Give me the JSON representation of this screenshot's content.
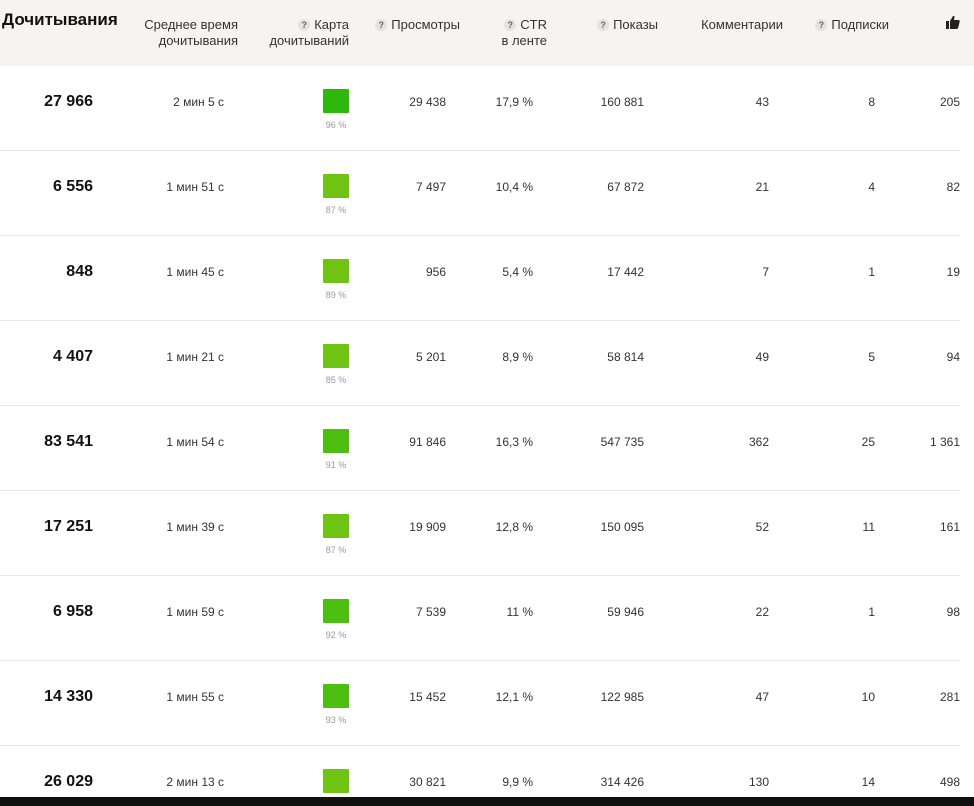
{
  "header": {
    "reads": "Дочитывания",
    "avg_time_1": "Среднее время",
    "avg_time_2": "дочитывания",
    "map_1": "Карта",
    "map_2": "дочитываний",
    "views": "Просмотры",
    "ctr_1": "CTR",
    "ctr_2": "в ленте",
    "impressions": "Показы",
    "comments": "Комментарии",
    "subscriptions": "Подписки",
    "help_symbol": "?",
    "likes_icon": "thumbs-up-icon"
  },
  "colors": {
    "dark_green": "#2db80e",
    "mid_green": "#4cbe10",
    "light_green": "#6fc413"
  },
  "rows": [
    {
      "reads": "27 966",
      "avg_time": "2 мин 5 с",
      "map_pct": "96 %",
      "views": "29 438",
      "ctr": "17,9 %",
      "impressions": "160 881",
      "comments": "43",
      "subscriptions": "8",
      "likes": "205"
    },
    {
      "reads": "6 556",
      "avg_time": "1 мин 51 с",
      "map_pct": "87 %",
      "views": "7 497",
      "ctr": "10,4 %",
      "impressions": "67 872",
      "comments": "21",
      "subscriptions": "4",
      "likes": "82"
    },
    {
      "reads": "848",
      "avg_time": "1 мин 45 с",
      "map_pct": "89 %",
      "views": "956",
      "ctr": "5,4 %",
      "impressions": "17 442",
      "comments": "7",
      "subscriptions": "1",
      "likes": "19"
    },
    {
      "reads": "4 407",
      "avg_time": "1 мин 21 с",
      "map_pct": "85 %",
      "views": "5 201",
      "ctr": "8,9 %",
      "impressions": "58 814",
      "comments": "49",
      "subscriptions": "5",
      "likes": "94"
    },
    {
      "reads": "83 541",
      "avg_time": "1 мин 54 с",
      "map_pct": "91 %",
      "views": "91 846",
      "ctr": "16,3 %",
      "impressions": "547 735",
      "comments": "362",
      "subscriptions": "25",
      "likes": "1 361"
    },
    {
      "reads": "17 251",
      "avg_time": "1 мин 39 с",
      "map_pct": "87 %",
      "views": "19 909",
      "ctr": "12,8 %",
      "impressions": "150 095",
      "comments": "52",
      "subscriptions": "11",
      "likes": "161"
    },
    {
      "reads": "6 958",
      "avg_time": "1 мин 59 с",
      "map_pct": "92 %",
      "views": "7 539",
      "ctr": "11 %",
      "impressions": "59 946",
      "comments": "22",
      "subscriptions": "1",
      "likes": "98"
    },
    {
      "reads": "14 330",
      "avg_time": "1 мин 55 с",
      "map_pct": "93 %",
      "views": "15 452",
      "ctr": "12,1 %",
      "impressions": "122 985",
      "comments": "47",
      "subscriptions": "10",
      "likes": "281"
    },
    {
      "reads": "26 029",
      "avg_time": "2 мин 13 с",
      "map_pct": "",
      "views": "30 821",
      "ctr": "9,9 %",
      "impressions": "314 426",
      "comments": "130",
      "subscriptions": "14",
      "likes": "498"
    }
  ]
}
